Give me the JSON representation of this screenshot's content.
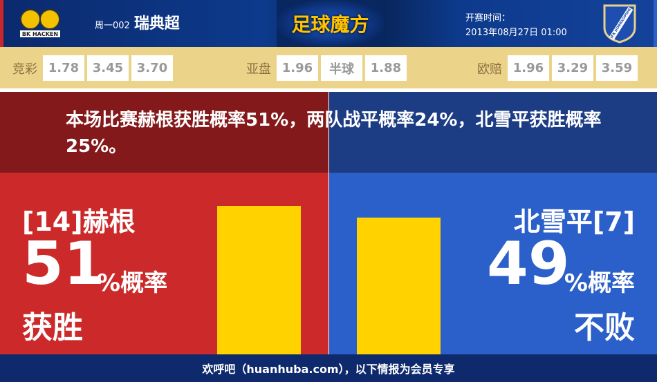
{
  "header": {
    "home_logo_text": "BK HACKEN",
    "away_logo_text": "IFK NORRKOPING",
    "match_no": "周一002",
    "league": "瑞典超",
    "brand": "足球魔方",
    "time_label": "开赛时间：",
    "time_value": "2013年08月27日 01:00"
  },
  "odds": [
    {
      "label": "竞彩",
      "values": [
        "1.78",
        "3.45",
        "3.70"
      ]
    },
    {
      "label": "亚盘",
      "values": [
        "1.96",
        "半球",
        "1.88"
      ]
    },
    {
      "label": "欧赔",
      "values": [
        "1.96",
        "3.29",
        "3.59"
      ]
    }
  ],
  "summary": "本场比赛赫根获胜概率51%，两队战平概率24%，北雪平获胜概率25%。",
  "home": {
    "team": "[14]赫根",
    "percent": "51",
    "unit": "%概率",
    "result": "获胜"
  },
  "away": {
    "team": "北雪平[7]",
    "percent": "49",
    "unit": "%概率",
    "result": "不败"
  },
  "chart_data": {
    "type": "bar",
    "categories": [
      "赫根获胜",
      "北雪平不败"
    ],
    "values": [
      51,
      49
    ],
    "colors": [
      "#ffd200",
      "#ffd200"
    ]
  },
  "colors": {
    "home": "#cc2a2a",
    "away": "#2b5fc9",
    "bar": "#ffd200"
  },
  "footer": "欢呼吧（huanhuba.com），以下情报为会员专享"
}
